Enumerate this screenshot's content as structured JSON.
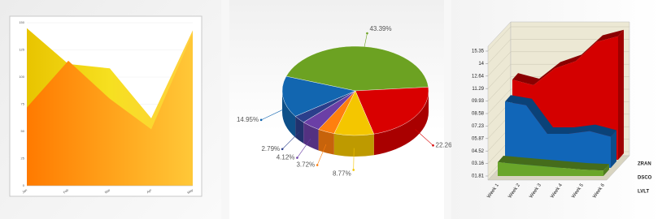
{
  "chart_data": [
    {
      "type": "area",
      "categories": [
        "Jan",
        "Feb",
        "Mar",
        "Apr",
        "May"
      ],
      "series": [
        {
          "color": "#f2d200",
          "values": [
            145,
            112,
            108,
            62,
            143
          ]
        },
        {
          "color": "#ff8a10",
          "values": [
            72,
            115,
            80,
            52,
            140
          ]
        }
      ],
      "ylim": [
        0,
        150
      ],
      "yticks": [
        0,
        25,
        50,
        75,
        100,
        125,
        150
      ],
      "grid": true
    },
    {
      "type": "pie",
      "values": [
        43.39,
        22.26,
        8.77,
        3.72,
        4.12,
        2.79,
        14.95
      ],
      "value_labels": [
        "43.39%",
        "22.26%",
        "8.77%",
        "3.72%",
        "4.12%",
        "2.79%",
        "14.95%"
      ],
      "colors": [
        "#6ca222",
        "#d90000",
        "#f4c600",
        "#ff7f0e",
        "#6b3fa6",
        "#2b3f8c",
        "#1266b0"
      ]
    },
    {
      "type": "area3d",
      "categories": [
        "Week 1",
        "Week 2",
        "Week 3",
        "Week 4",
        "Week 5",
        "Week 6"
      ],
      "series": [
        {
          "name": "ZRAN",
          "color": "#d40000",
          "values": [
            10.5,
            9.9,
            11.7,
            12.5,
            14.6,
            15.2
          ]
        },
        {
          "name": "DSCO",
          "color": "#1166b8",
          "values": [
            9.0,
            8.6,
            5.5,
            5.5,
            5.8,
            5.2
          ]
        },
        {
          "name": "LVLT",
          "color": "#6aa62a",
          "values": [
            3.3,
            3.1,
            2.9,
            2.7,
            2.5,
            2.4
          ]
        }
      ],
      "ylim": [
        1.81,
        15.35
      ],
      "yticks": [
        {
          "value": 1.81,
          "label": "01.81"
        },
        {
          "value": 3.16,
          "label": "03.16"
        },
        {
          "value": 4.52,
          "label": "04.52"
        },
        {
          "value": 5.87,
          "label": "05.87"
        },
        {
          "value": 7.23,
          "label": "07.23"
        },
        {
          "value": 8.58,
          "label": "08.58"
        },
        {
          "value": 9.93,
          "label": "09.93"
        },
        11.29,
        12.64,
        14,
        15.35
      ],
      "grid": true
    }
  ]
}
